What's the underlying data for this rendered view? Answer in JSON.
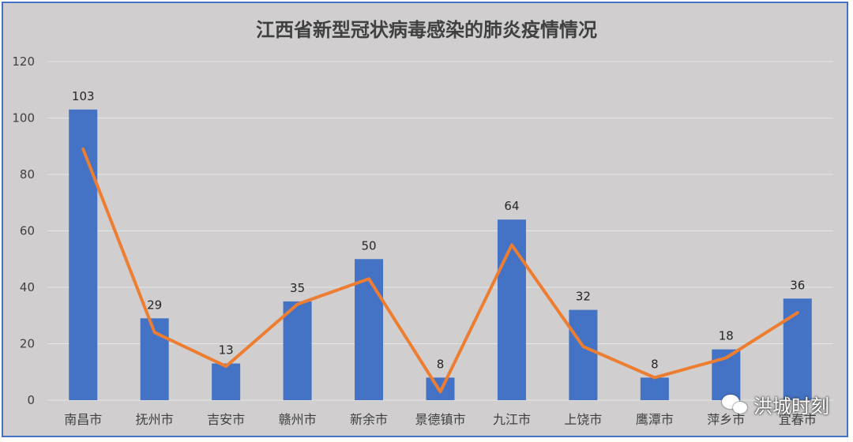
{
  "chart_data": {
    "type": "bar",
    "title": "江西省新型冠状病毒感染的肺炎疫情情况",
    "categories": [
      "南昌市",
      "抚州市",
      "吉安市",
      "赣州市",
      "新余市",
      "景德镇市",
      "九江市",
      "上饶市",
      "鹰潭市",
      "萍乡市",
      "宜春市"
    ],
    "series": [
      {
        "type": "bar",
        "color": "#4472c4",
        "values": [
          103,
          29,
          13,
          35,
          50,
          8,
          64,
          32,
          8,
          18,
          36
        ]
      },
      {
        "type": "line",
        "color": "#ed7d31",
        "values": [
          89,
          24,
          12,
          34,
          43,
          3,
          55,
          19,
          8,
          15,
          31
        ]
      }
    ],
    "ylim": [
      0,
      120
    ],
    "yticks": [
      0,
      20,
      40,
      60,
      80,
      100,
      120
    ],
    "grid": true,
    "xlabel": "",
    "ylabel": ""
  },
  "watermark": {
    "icon": "wechat-icon",
    "text": "洪城时刻"
  }
}
